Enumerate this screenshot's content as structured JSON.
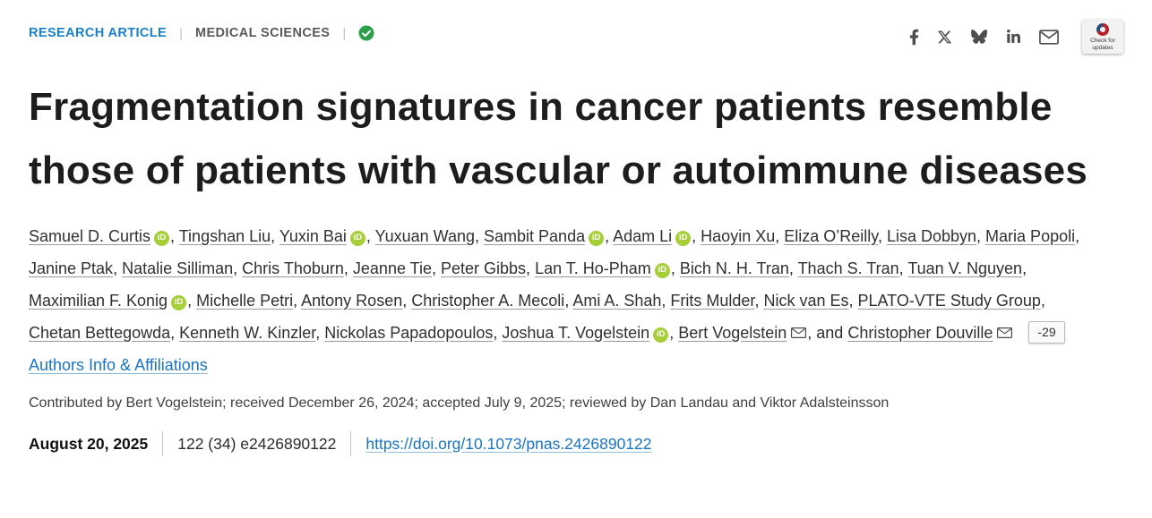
{
  "top_bar": {
    "article_type": "RESEARCH ARTICLE",
    "section": "MEDICAL SCIENCES",
    "separator": "|",
    "check_for_updates": "Check for updates"
  },
  "title": "Fragmentation signatures in cancer patients resemble those of patients with vascular or autoimmune diseases",
  "authors": [
    {
      "name": "Samuel D. Curtis",
      "orcid": true
    },
    {
      "name": "Tingshan Liu"
    },
    {
      "name": "Yuxin Bai",
      "orcid": true
    },
    {
      "name": "Yuxuan Wang"
    },
    {
      "name": "Sambit Panda",
      "orcid": true
    },
    {
      "name": "Adam Li",
      "orcid": true
    },
    {
      "name": "Haoyin Xu"
    },
    {
      "name": "Eliza O’Reilly"
    },
    {
      "name": "Lisa Dobbyn"
    },
    {
      "name": "Maria Popoli"
    },
    {
      "name": "Janine Ptak"
    },
    {
      "name": "Natalie Silliman"
    },
    {
      "name": "Chris Thoburn"
    },
    {
      "name": "Jeanne Tie"
    },
    {
      "name": "Peter Gibbs"
    },
    {
      "name": "Lan T. Ho-Pham",
      "orcid": true
    },
    {
      "name": "Bich N. H. Tran"
    },
    {
      "name": "Thach S. Tran"
    },
    {
      "name": "Tuan V. Nguyen"
    },
    {
      "name": "Maximilian F. Konig",
      "orcid": true
    },
    {
      "name": "Michelle Petri"
    },
    {
      "name": "Antony Rosen"
    },
    {
      "name": "Christopher A. Mecoli"
    },
    {
      "name": "Ami A. Shah"
    },
    {
      "name": "Frits Mulder"
    },
    {
      "name": "Nick van Es"
    },
    {
      "name": "PLATO-VTE Study Group"
    },
    {
      "name": "Chetan Bettegowda"
    },
    {
      "name": "Kenneth W. Kinzler"
    },
    {
      "name": "Nickolas Papadopoulos"
    },
    {
      "name": "Joshua T. Vogelstein",
      "orcid": true
    },
    {
      "name": "Bert Vogelstein",
      "email": true
    },
    {
      "name": "Christopher Douville",
      "email": true
    }
  ],
  "authors_badge": "-29",
  "authors_info_link": "Authors Info & Affiliations",
  "contributed": "Contributed by Bert Vogelstein; received December 26, 2024; accepted July 9, 2025; reviewed by Dan Landau and Viktor Adalsteinsson",
  "meta": {
    "date": "August 20, 2025",
    "citation": "122 (34) e2426890122",
    "doi": "https://doi.org/10.1073/pnas.2426890122"
  },
  "colors": {
    "link_blue": "#1b74c2",
    "kicker_blue": "#1b80cc",
    "orcid_green": "#a6ce39",
    "check_green": "#2d9e49"
  }
}
